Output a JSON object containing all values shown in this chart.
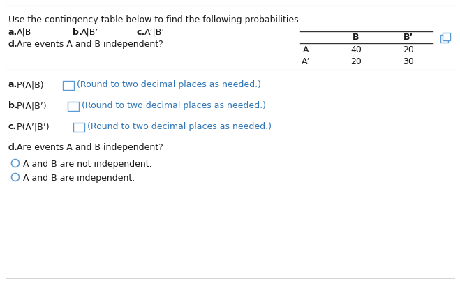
{
  "title_line": "Use the contingency table below to find the following probabilities.",
  "table_col_headers": [
    "B",
    "B’"
  ],
  "table_row_headers": [
    "A",
    "A’"
  ],
  "table_data": [
    [
      40,
      20
    ],
    [
      20,
      30
    ]
  ],
  "answer_a_hint": "(Round to two decimal places as needed.)",
  "answer_b_hint": "(Round to two decimal places as needed.)",
  "answer_c_hint": "(Round to two decimal places as needed.)",
  "answer_d_label": "Are events A and B independent?",
  "radio_1": "A and B are not independent.",
  "radio_2": "A and B are independent.",
  "bg_color": "#ffffff",
  "text_color_black": "#1a1a1a",
  "hint_color": "#2e75b6",
  "table_line_color": "#333333",
  "input_box_color": "#5b9bd5",
  "radio_color": "#5b9bd5",
  "sep_color": "#cccccc",
  "font_size": 9.0
}
